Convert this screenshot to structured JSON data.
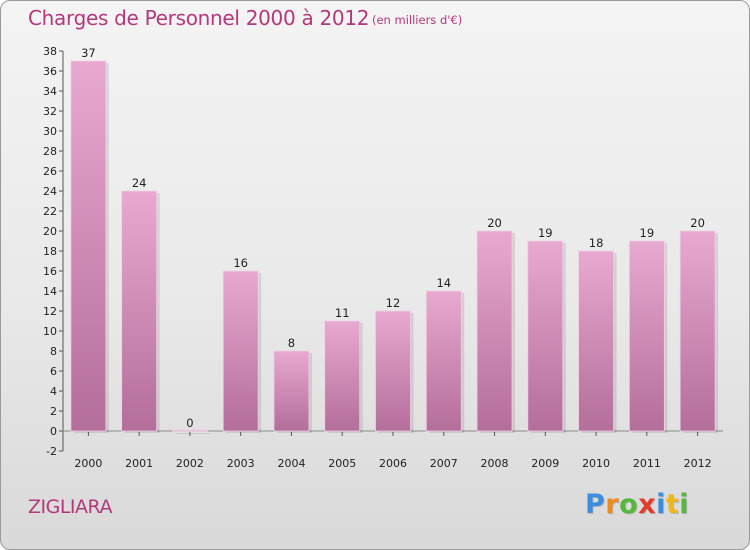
{
  "chart_data": {
    "type": "bar",
    "title": "Charges de Personnel 2000 à 2012",
    "subtitle": "(en milliers d'€)",
    "categories": [
      "2000",
      "2001",
      "2002",
      "2003",
      "2004",
      "2005",
      "2006",
      "2007",
      "2008",
      "2009",
      "2010",
      "2011",
      "2012"
    ],
    "values": [
      37,
      24,
      0,
      16,
      8,
      11,
      12,
      14,
      20,
      19,
      18,
      19,
      20
    ],
    "data_labels": [
      "37",
      "24",
      "0",
      "16",
      "8",
      "11",
      "12",
      "14",
      "20",
      "19",
      "18",
      "19",
      "20"
    ],
    "ylim": [
      -2,
      38
    ],
    "y_ticks": [
      -2,
      0,
      2,
      4,
      6,
      8,
      10,
      12,
      14,
      16,
      18,
      20,
      22,
      24,
      26,
      28,
      30,
      32,
      34,
      36,
      38
    ],
    "xlabel": "",
    "ylabel": "",
    "grid": false,
    "legend": "none",
    "colors": {
      "bar_top": "#e8a9d0",
      "bar_bottom": "#b36e9a",
      "text_accent": "#b4387c",
      "axis": "#555555"
    }
  },
  "footer": {
    "commune": "ZIGLIARA"
  },
  "logo": {
    "letters": [
      {
        "char": "P",
        "color": "#3b8ede"
      },
      {
        "char": "r",
        "color": "#f08a1c"
      },
      {
        "char": "o",
        "color": "#55b83a"
      },
      {
        "char": "x",
        "color": "#e23b2c"
      },
      {
        "char": "i",
        "color": "#3b8ede"
      },
      {
        "char": "t",
        "color": "#f0b71c"
      },
      {
        "char": "i",
        "color": "#55b83a"
      }
    ]
  }
}
